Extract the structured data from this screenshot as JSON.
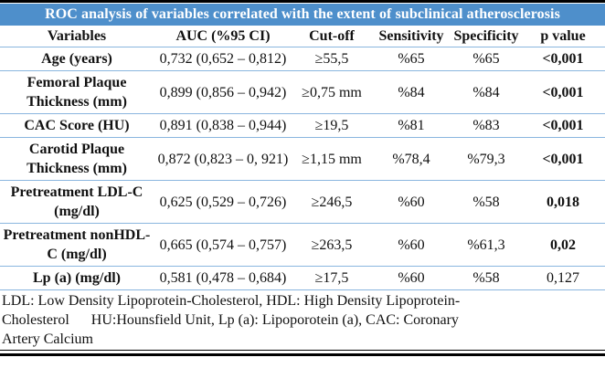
{
  "title": "ROC analysis of variables correlated with the extent of subclinical atherosclerosis",
  "columns": {
    "variable": "Variables",
    "auc": "AUC (%95 CI)",
    "cutoff": "Cut-off",
    "sensitivity": "Sensitivity",
    "specificity": "Specificity",
    "p": "p value"
  },
  "rows": [
    {
      "variable": "Age (years)",
      "auc": "0,732 (0,652 – 0,812)",
      "cutoff": "≥55,5",
      "sensitivity": "%65",
      "specificity": "%65",
      "p": "<0,001"
    },
    {
      "variable": "Femoral Plaque Thickness (mm)",
      "auc": "0,899 (0,856 – 0,942)",
      "cutoff": "≥0,75 mm",
      "sensitivity": "%84",
      "specificity": "%84",
      "p": "<0,001"
    },
    {
      "variable": "CAC Score (HU)",
      "auc": "0,891 (0,838 – 0,944)",
      "cutoff": "≥19,5",
      "sensitivity": "%81",
      "specificity": "%83",
      "p": "<0,001"
    },
    {
      "variable": "Carotid Plaque Thickness (mm)",
      "auc": "0,872 (0,823 – 0, 921)",
      "cutoff": "≥1,15 mm",
      "sensitivity": "%78,4",
      "specificity": "%79,3",
      "p": "<0,001"
    },
    {
      "variable": "Pretreatment LDL-C (mg/dl)",
      "auc": "0,625 (0,529 – 0,726)",
      "cutoff": "≥246,5",
      "sensitivity": "%60",
      "specificity": "%58",
      "p": "0,018"
    },
    {
      "variable": "Pretreatment nonHDL-C (mg/dl)",
      "auc": "0,665 (0,574 – 0,757)",
      "cutoff": "≥263,5",
      "sensitivity": "%60",
      "specificity": "%61,3",
      "p": "0,02"
    },
    {
      "variable": "Lp (a) (mg/dl)",
      "auc": "0,581 (0,478 – 0,684)",
      "cutoff": "≥17,5",
      "sensitivity": "%60",
      "specificity": "%58",
      "p": "0,127"
    }
  ],
  "footnote": "LDL: Low Density Lipoprotein-Cholesterol, HDL: High Density Lipoprotein-\nCholesterol      HU:Hounsfield Unit, Lp (a): Lipoporotein (a), CAC: Coronary\nArtery Calcium",
  "colors": {
    "title_background": "#4E8FCB",
    "title_text": "#FFFFFF",
    "row_divider": "#8AB6DF",
    "outer_border": "#000000"
  }
}
